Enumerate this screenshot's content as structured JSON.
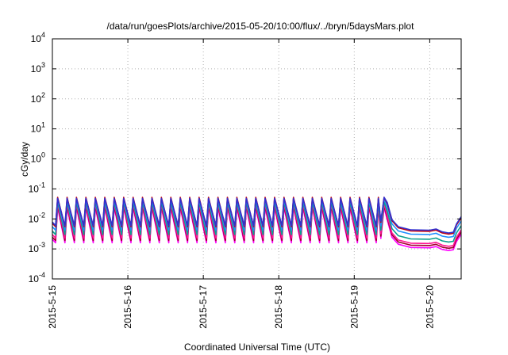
{
  "chart_data": {
    "type": "line",
    "title": "/data/run/goesPlots/archive/2015-05-20/10:00/flux/../bryn/5daysMars.plot",
    "xlabel": "Coordinated Universal Time (UTC)",
    "ylabel": "cGy/day",
    "yscale": "log",
    "xlim": [
      "2015-05-15T00:00",
      "2015-05-20T10:00"
    ],
    "ylim": [
      0.0001,
      10000
    ],
    "grid": true,
    "legend": "none",
    "x_ticks": [
      {
        "date": "2015-05-15T00:00",
        "label": "2015-5-15"
      },
      {
        "date": "2015-05-16T00:00",
        "label": "2015-5-16"
      },
      {
        "date": "2015-05-17T00:00",
        "label": "2015-5-17"
      },
      {
        "date": "2015-05-18T00:00",
        "label": "2015-5-18"
      },
      {
        "date": "2015-05-19T00:00",
        "label": "2015-5-19"
      },
      {
        "date": "2015-05-20T00:00",
        "label": "2015-5-20"
      }
    ],
    "y_ticks": [
      {
        "value": 0.0001,
        "base": "10",
        "exp": "-4"
      },
      {
        "value": 0.001,
        "base": "10",
        "exp": "-3"
      },
      {
        "value": 0.01,
        "base": "10",
        "exp": "-2"
      },
      {
        "value": 0.1,
        "base": "10",
        "exp": "-1"
      },
      {
        "value": 1,
        "base": "10",
        "exp": "0"
      },
      {
        "value": 10,
        "base": "10",
        "exp": "1"
      },
      {
        "value": 100,
        "base": "10",
        "exp": "2"
      },
      {
        "value": 1000,
        "base": "10",
        "exp": "3"
      },
      {
        "value": 10000,
        "base": "10",
        "exp": "4"
      }
    ],
    "cycle_start": "2015-05-15T01:00",
    "cycle_period_hours": 3,
    "cycle_end": "2015-05-19T09:30",
    "decay_knots": [
      {
        "date": "2015-05-19T09:30",
        "value": 0.052
      },
      {
        "date": "2015-05-19T10:30",
        "value": 0.035
      },
      {
        "date": "2015-05-19T12:00",
        "value": 0.0095
      },
      {
        "date": "2015-05-19T14:00",
        "value": 0.0055
      },
      {
        "date": "2015-05-19T18:00",
        "value": 0.0043
      },
      {
        "date": "2015-05-20T00:00",
        "value": 0.0042
      },
      {
        "date": "2015-05-20T02:00",
        "value": 0.0046
      },
      {
        "date": "2015-05-20T04:00",
        "value": 0.0037
      },
      {
        "date": "2015-05-20T06:00",
        "value": 0.0034
      },
      {
        "date": "2015-05-20T07:30",
        "value": 0.0036
      },
      {
        "date": "2015-05-20T08:30",
        "value": 0.0068
      },
      {
        "date": "2015-05-20T10:00",
        "value": 0.0118
      }
    ],
    "series": [
      {
        "color": "#ff00ff",
        "peak": 0.024,
        "trough": 0.0016,
        "scale": 0.26
      },
      {
        "color": "#a0002a",
        "peak": 0.028,
        "trough": 0.0019,
        "scale": 0.31
      },
      {
        "color": "#ff1493",
        "peak": 0.032,
        "trough": 0.0023,
        "scale": 0.36
      },
      {
        "color": "#0aa090",
        "peak": 0.038,
        "trough": 0.003,
        "scale": 0.5
      },
      {
        "color": "#1e90ff",
        "peak": 0.046,
        "trough": 0.0042,
        "scale": 0.72
      },
      {
        "color": "#c00010",
        "peak": 0.052,
        "trough": 0.0055,
        "scale": 0.92
      },
      {
        "color": "#3030d0",
        "peak": 0.048,
        "trough": 0.006,
        "scale": 1.0
      }
    ]
  }
}
